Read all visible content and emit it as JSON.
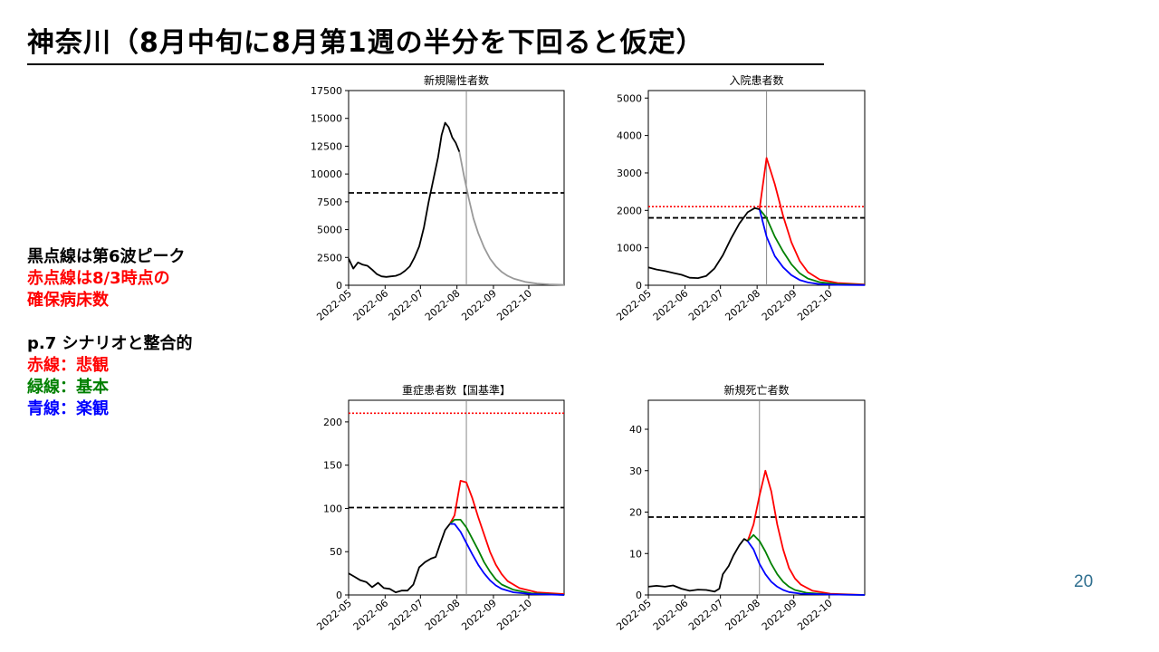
{
  "title": "神奈川（8月中旬に8月第1週の半分を下回ると仮定）",
  "notes": {
    "black_line": "黒点線は第6波ピーク",
    "red_dotted_line": "赤点線は8/3時点の",
    "red_dotted_line_2": "確保病床数",
    "scenario_ref": "p.7 シナリオと整合的",
    "red": "赤線：悲観",
    "green": "緑線：基本",
    "blue": "青線：楽観"
  },
  "colors": {
    "red": "#ff0000",
    "green": "#008000",
    "blue": "#0000ff",
    "black": "#000000",
    "gray": "#999999",
    "page_number": "#2f6f8f"
  },
  "page_number": "20",
  "chart_data": [
    {
      "type": "line",
      "title": "新規陽性者数",
      "xlim": [
        0,
        183
      ],
      "ylim": [
        0,
        17500
      ],
      "yticks": [
        0,
        2500,
        5000,
        7500,
        10000,
        12500,
        15000,
        17500
      ],
      "xticks": [
        {
          "x": 0,
          "label": "2022-05"
        },
        {
          "x": 31,
          "label": "2022-06"
        },
        {
          "x": 61,
          "label": "2022-07"
        },
        {
          "x": 92,
          "label": "2022-08"
        },
        {
          "x": 123,
          "label": "2022-09"
        },
        {
          "x": 153,
          "label": "2022-10"
        }
      ],
      "vline": 100,
      "hline": 8300,
      "series": [
        {
          "color": "#000000",
          "points": [
            [
              0,
              2400
            ],
            [
              4,
              1500
            ],
            [
              8,
              2050
            ],
            [
              12,
              1850
            ],
            [
              16,
              1750
            ],
            [
              20,
              1400
            ],
            [
              24,
              1000
            ],
            [
              28,
              800
            ],
            [
              32,
              750
            ],
            [
              36,
              800
            ],
            [
              40,
              850
            ],
            [
              44,
              1000
            ],
            [
              48,
              1300
            ],
            [
              52,
              1700
            ],
            [
              56,
              2500
            ],
            [
              60,
              3500
            ],
            [
              64,
              5200
            ],
            [
              68,
              7500
            ],
            [
              72,
              9500
            ],
            [
              76,
              11500
            ],
            [
              79,
              13500
            ],
            [
              82,
              14600
            ],
            [
              85,
              14200
            ],
            [
              88,
              13300
            ],
            [
              91,
              12800
            ],
            [
              94,
              12000
            ]
          ]
        },
        {
          "color": "#999999",
          "points": [
            [
              94,
              12000
            ],
            [
              98,
              9800
            ],
            [
              102,
              7800
            ],
            [
              106,
              6000
            ],
            [
              110,
              4700
            ],
            [
              115,
              3400
            ],
            [
              120,
              2400
            ],
            [
              125,
              1700
            ],
            [
              130,
              1200
            ],
            [
              135,
              850
            ],
            [
              140,
              600
            ],
            [
              150,
              300
            ],
            [
              160,
              150
            ],
            [
              170,
              80
            ],
            [
              183,
              40
            ]
          ]
        }
      ]
    },
    {
      "type": "line",
      "title": "入院患者数",
      "xlim": [
        0,
        183
      ],
      "ylim": [
        0,
        5200
      ],
      "yticks": [
        0,
        1000,
        2000,
        3000,
        4000,
        5000
      ],
      "xticks": [
        {
          "x": 0,
          "label": "2022-05"
        },
        {
          "x": 31,
          "label": "2022-06"
        },
        {
          "x": 61,
          "label": "2022-07"
        },
        {
          "x": 92,
          "label": "2022-08"
        },
        {
          "x": 123,
          "label": "2022-09"
        },
        {
          "x": 153,
          "label": "2022-10"
        }
      ],
      "vline": 100,
      "hline": 1800,
      "hline_red": 2100,
      "series": [
        {
          "color": "#000000",
          "points": [
            [
              0,
              480
            ],
            [
              7,
              420
            ],
            [
              14,
              380
            ],
            [
              21,
              330
            ],
            [
              28,
              280
            ],
            [
              35,
              200
            ],
            [
              42,
              190
            ],
            [
              49,
              250
            ],
            [
              56,
              450
            ],
            [
              63,
              800
            ],
            [
              70,
              1250
            ],
            [
              77,
              1650
            ],
            [
              84,
              1950
            ],
            [
              90,
              2060
            ],
            [
              94,
              2030
            ]
          ]
        },
        {
          "color": "#ff0000",
          "points": [
            [
              94,
              2030
            ],
            [
              100,
              3400
            ],
            [
              107,
              2700
            ],
            [
              114,
              1850
            ],
            [
              121,
              1150
            ],
            [
              128,
              650
            ],
            [
              135,
              350
            ],
            [
              145,
              150
            ],
            [
              160,
              60
            ],
            [
              183,
              20
            ]
          ]
        },
        {
          "color": "#008000",
          "points": [
            [
              94,
              2030
            ],
            [
              100,
              1800
            ],
            [
              107,
              1300
            ],
            [
              114,
              900
            ],
            [
              121,
              560
            ],
            [
              128,
              320
            ],
            [
              135,
              180
            ],
            [
              145,
              80
            ],
            [
              160,
              30
            ],
            [
              183,
              10
            ]
          ]
        },
        {
          "color": "#0000ff",
          "points": [
            [
              94,
              2030
            ],
            [
              100,
              1300
            ],
            [
              107,
              780
            ],
            [
              114,
              480
            ],
            [
              121,
              270
            ],
            [
              128,
              140
            ],
            [
              135,
              75
            ],
            [
              145,
              30
            ],
            [
              160,
              10
            ],
            [
              183,
              5
            ]
          ]
        }
      ]
    },
    {
      "type": "line",
      "title": "重症患者数【国基準】",
      "xlim": [
        0,
        183
      ],
      "ylim": [
        0,
        225
      ],
      "yticks": [
        0,
        50,
        100,
        150,
        200
      ],
      "xticks": [
        {
          "x": 0,
          "label": "2022-05"
        },
        {
          "x": 31,
          "label": "2022-06"
        },
        {
          "x": 61,
          "label": "2022-07"
        },
        {
          "x": 92,
          "label": "2022-08"
        },
        {
          "x": 123,
          "label": "2022-09"
        },
        {
          "x": 153,
          "label": "2022-10"
        }
      ],
      "vline": 100,
      "hline": 101,
      "hline_red": 210,
      "series": [
        {
          "color": "#000000",
          "points": [
            [
              0,
              25
            ],
            [
              5,
              21
            ],
            [
              10,
              17
            ],
            [
              15,
              15
            ],
            [
              20,
              9
            ],
            [
              25,
              14
            ],
            [
              30,
              8
            ],
            [
              35,
              7
            ],
            [
              40,
              3
            ],
            [
              45,
              5
            ],
            [
              50,
              5
            ],
            [
              55,
              12
            ],
            [
              60,
              32
            ],
            [
              65,
              38
            ],
            [
              70,
              42
            ],
            [
              74,
              44
            ],
            [
              78,
              60
            ],
            [
              82,
              75
            ],
            [
              86,
              82
            ]
          ]
        },
        {
          "color": "#ff0000",
          "points": [
            [
              86,
              82
            ],
            [
              90,
              92
            ],
            [
              95,
              132
            ],
            [
              100,
              130
            ],
            [
              105,
              112
            ],
            [
              110,
              90
            ],
            [
              115,
              70
            ],
            [
              120,
              50
            ],
            [
              125,
              35
            ],
            [
              130,
              24
            ],
            [
              135,
              16
            ],
            [
              145,
              8
            ],
            [
              160,
              3
            ],
            [
              183,
              1
            ]
          ]
        },
        {
          "color": "#008000",
          "points": [
            [
              86,
              82
            ],
            [
              90,
              87
            ],
            [
              95,
              87
            ],
            [
              100,
              78
            ],
            [
              105,
              65
            ],
            [
              110,
              52
            ],
            [
              115,
              38
            ],
            [
              120,
              27
            ],
            [
              125,
              18
            ],
            [
              130,
              12
            ],
            [
              140,
              6
            ],
            [
              155,
              2
            ],
            [
              183,
              0
            ]
          ]
        },
        {
          "color": "#0000ff",
          "points": [
            [
              86,
              82
            ],
            [
              90,
              82
            ],
            [
              95,
              73
            ],
            [
              100,
              60
            ],
            [
              105,
              47
            ],
            [
              110,
              35
            ],
            [
              115,
              25
            ],
            [
              120,
              17
            ],
            [
              125,
              11
            ],
            [
              130,
              7
            ],
            [
              140,
              3
            ],
            [
              155,
              1
            ],
            [
              183,
              0
            ]
          ]
        }
      ]
    },
    {
      "type": "line",
      "title": "新規死亡者数",
      "xlim": [
        0,
        183
      ],
      "ylim": [
        0,
        47
      ],
      "yticks": [
        0,
        10,
        20,
        30,
        40
      ],
      "xticks": [
        {
          "x": 0,
          "label": "2022-05"
        },
        {
          "x": 31,
          "label": "2022-06"
        },
        {
          "x": 61,
          "label": "2022-07"
        },
        {
          "x": 92,
          "label": "2022-08"
        },
        {
          "x": 123,
          "label": "2022-09"
        },
        {
          "x": 153,
          "label": "2022-10"
        }
      ],
      "vline": 94,
      "hline": 18.8,
      "series": [
        {
          "color": "#000000",
          "points": [
            [
              0,
              2
            ],
            [
              7,
              2.2
            ],
            [
              14,
              2
            ],
            [
              21,
              2.3
            ],
            [
              28,
              1.5
            ],
            [
              35,
              1
            ],
            [
              42,
              1.3
            ],
            [
              49,
              1.2
            ],
            [
              56,
              0.8
            ],
            [
              60,
              1.5
            ],
            [
              63,
              5
            ],
            [
              68,
              7
            ],
            [
              72,
              9.5
            ],
            [
              77,
              12
            ],
            [
              81,
              13.5
            ],
            [
              84,
              13
            ]
          ]
        },
        {
          "color": "#ff0000",
          "points": [
            [
              84,
              13
            ],
            [
              89,
              17
            ],
            [
              94,
              24
            ],
            [
              99,
              30
            ],
            [
              104,
              25
            ],
            [
              109,
              17
            ],
            [
              114,
              11
            ],
            [
              119,
              6.5
            ],
            [
              124,
              4
            ],
            [
              129,
              2.5
            ],
            [
              139,
              1
            ],
            [
              154,
              0.3
            ],
            [
              183,
              0
            ]
          ]
        },
        {
          "color": "#008000",
          "points": [
            [
              84,
              13
            ],
            [
              89,
              14.5
            ],
            [
              94,
              13
            ],
            [
              99,
              10.5
            ],
            [
              104,
              7.5
            ],
            [
              109,
              5
            ],
            [
              114,
              3.2
            ],
            [
              119,
              2
            ],
            [
              124,
              1.2
            ],
            [
              134,
              0.5
            ],
            [
              154,
              0.1
            ],
            [
              183,
              0
            ]
          ]
        },
        {
          "color": "#0000ff",
          "points": [
            [
              84,
              13
            ],
            [
              89,
              11
            ],
            [
              94,
              7.5
            ],
            [
              99,
              5
            ],
            [
              104,
              3.2
            ],
            [
              109,
              2
            ],
            [
              114,
              1.2
            ],
            [
              119,
              0.7
            ],
            [
              129,
              0.3
            ],
            [
              154,
              0.1
            ],
            [
              183,
              0
            ]
          ]
        }
      ]
    }
  ]
}
